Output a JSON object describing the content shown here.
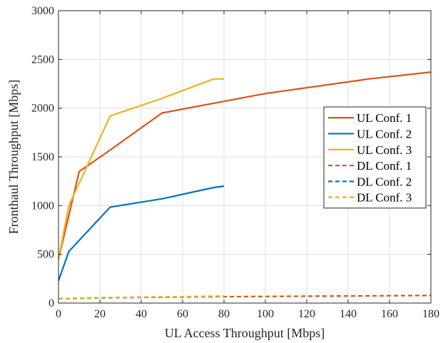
{
  "chart_data": {
    "type": "line",
    "xlabel": "UL Access Throughput [Mbps]",
    "ylabel": "Fronthaul Throughput [Mbps]",
    "xlim": [
      0,
      180
    ],
    "ylim": [
      0,
      3000
    ],
    "xticks": [
      0,
      20,
      40,
      60,
      80,
      100,
      120,
      140,
      160,
      180
    ],
    "yticks": [
      0,
      500,
      1000,
      1500,
      2000,
      2500,
      3000
    ],
    "grid": true,
    "legend_position": "right",
    "series": [
      {
        "name": "UL Conf. 1",
        "color": "#d95319",
        "dash": "solid",
        "x": [
          0,
          10,
          25,
          50,
          75,
          100,
          150,
          180
        ],
        "y": [
          450,
          1350,
          1570,
          1950,
          2050,
          2150,
          2300,
          2370
        ]
      },
      {
        "name": "UL Conf. 2",
        "color": "#0072bd",
        "dash": "solid",
        "x": [
          0,
          5,
          25,
          50,
          75,
          80
        ],
        "y": [
          230,
          530,
          985,
          1070,
          1185,
          1200
        ]
      },
      {
        "name": "UL Conf. 3",
        "color": "#edb120",
        "dash": "solid",
        "x": [
          0,
          5,
          25,
          50,
          75,
          80
        ],
        "y": [
          450,
          1000,
          1920,
          2100,
          2300,
          2300
        ]
      },
      {
        "name": "DL Conf. 1",
        "color": "#d95319",
        "dash": "dashed",
        "x": [
          0,
          25,
          50,
          75,
          100,
          150,
          180
        ],
        "y": [
          45,
          55,
          60,
          65,
          68,
          74,
          78
        ]
      },
      {
        "name": "DL Conf. 2",
        "color": "#0072bd",
        "dash": "dashed",
        "x": [
          0,
          25,
          50,
          75,
          80
        ],
        "y": [
          45,
          55,
          62,
          68,
          70
        ]
      },
      {
        "name": "DL Conf. 3",
        "color": "#edb120",
        "dash": "dashed",
        "x": [
          0,
          25,
          50,
          75,
          80
        ],
        "y": [
          45,
          57,
          64,
          70,
          72
        ]
      }
    ]
  }
}
